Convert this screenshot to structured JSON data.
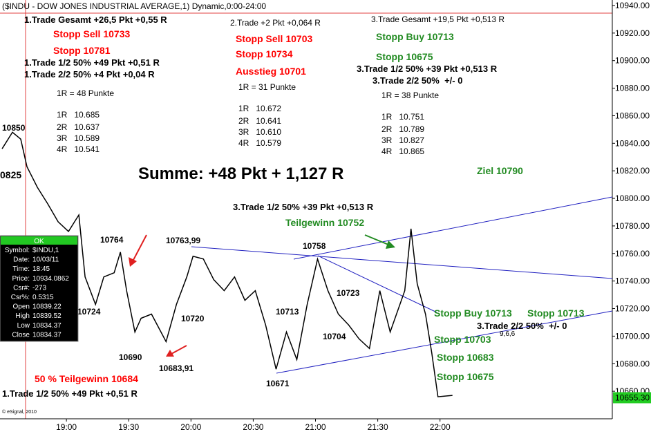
{
  "chart_data": {
    "type": "line",
    "title": "($INDU - DOW JONES INDUSTRIAL AVERAGE,1) Dynamic,0:00-24:00",
    "x": [
      1109,
      1114,
      1118,
      1121,
      1126,
      1131,
      1136,
      1141,
      1146,
      1149,
      1154,
      1158,
      1163,
      1166,
      1169,
      1173,
      1176,
      1181,
      1188,
      1193,
      1198,
      1201,
      1206,
      1211,
      1216,
      1221,
      1226,
      1231,
      1236,
      1241,
      1246,
      1251,
      1256,
      1261,
      1266,
      1271,
      1276,
      1281,
      1286,
      1291,
      1296,
      1303,
      1306,
      1309,
      1313,
      1316,
      1319,
      1326
    ],
    "series": [
      {
        "name": "$INDU,1",
        "color": "#000000",
        "values": [
          10836,
          10848,
          10843,
          10823,
          10808,
          10796,
          10783,
          10776,
          10788,
          10743,
          10723,
          10743,
          10746,
          10761,
          10733,
          10703,
          10713,
          10716,
          10696,
          10723,
          10743,
          10758,
          10756,
          10741,
          10733,
          10743,
          10726,
          10733,
          10708,
          10676,
          10703,
          10683,
          10723,
          10756,
          10733,
          10716,
          10708,
          10698,
          10691,
          10733,
          10703,
          10733,
          10778,
          10738,
          10716,
          10688,
          10656,
          10657
        ]
      }
    ],
    "xlim": [
      1108,
      1403
    ],
    "xticks": [
      {
        "value": 1140,
        "label": "19:00"
      },
      {
        "value": 1170,
        "label": "19:30"
      },
      {
        "value": 1200,
        "label": "20:00"
      },
      {
        "value": 1230,
        "label": "20:30"
      },
      {
        "value": 1260,
        "label": "21:00"
      },
      {
        "value": 1290,
        "label": "21:30"
      },
      {
        "value": 1320,
        "label": "22:00"
      }
    ],
    "ylim": [
      10640,
      10944
    ],
    "yticks": [
      {
        "value": 10660,
        "label": "10660.00"
      },
      {
        "value": 10680,
        "label": "10680.00"
      },
      {
        "value": 10700,
        "label": "10700.00"
      },
      {
        "value": 10720,
        "label": "10720.00"
      },
      {
        "value": 10740,
        "label": "10740.00"
      },
      {
        "value": 10760,
        "label": "10760.00"
      },
      {
        "value": 10780,
        "label": "10780.00"
      },
      {
        "value": 10800,
        "label": "10800.00"
      },
      {
        "value": 10820,
        "label": "10820.00"
      },
      {
        "value": 10840,
        "label": "10840.00"
      },
      {
        "value": 10860,
        "label": "10860.00"
      },
      {
        "value": 10880,
        "label": "10880.00"
      },
      {
        "value": 10900,
        "label": "10900.00"
      },
      {
        "value": 10920,
        "label": "10920.00"
      },
      {
        "value": 10940,
        "label": "10940.00"
      }
    ],
    "last_price": {
      "value": 10655.3,
      "label": "10655.30"
    },
    "annotations": [
      {
        "text": "1.Trade Gesamt +26,5 Pkt +0,55 R",
        "color": "#000000"
      },
      {
        "text": "Stopp Sell 10733",
        "color": "#ff0000"
      },
      {
        "text": "Stopp 10781",
        "color": "#ff0000"
      },
      {
        "text": "1.Trade 1/2 50% +49 Pkt +0,51 R",
        "color": "#000000"
      },
      {
        "text": "1.Trade 2/2 50% +4 Pkt +0,04 R",
        "color": "#000000"
      },
      {
        "text": "1R = 48 Punkte",
        "color": "#000000"
      },
      {
        "text": "1R   10.685",
        "color": "#000000"
      },
      {
        "text": "2R   10.637",
        "color": "#000000"
      },
      {
        "text": "3R   10.589",
        "color": "#000000"
      },
      {
        "text": "4R   10.541",
        "color": "#000000"
      },
      {
        "text": "2.Trade +2 Pkt +0,064 R",
        "color": "#000000"
      },
      {
        "text": "Stopp Sell 10703",
        "color": "#ff0000"
      },
      {
        "text": "Stopp 10734",
        "color": "#ff0000"
      },
      {
        "text": "Ausstieg 10701",
        "color": "#ff0000"
      },
      {
        "text": "1R = 31 Punkte",
        "color": "#000000"
      },
      {
        "text": "1R   10.672",
        "color": "#000000"
      },
      {
        "text": "2R   10.641",
        "color": "#000000"
      },
      {
        "text": "3R   10.610",
        "color": "#000000"
      },
      {
        "text": "4R   10.579",
        "color": "#000000"
      },
      {
        "text": "3.Trade Gesamt +19,5 Pkt +0,513 R",
        "color": "#000000"
      },
      {
        "text": "Stopp Buy 10713",
        "color": "#228b22"
      },
      {
        "text": "Stopp 10675",
        "color": "#228b22"
      },
      {
        "text": "3.Trade 1/2 50% +39 Pkt +0,513 R",
        "color": "#000000"
      },
      {
        "text": "3.Trade 2/2 50%  +/- 0",
        "color": "#000000"
      },
      {
        "text": "1R = 38 Punkte",
        "color": "#000000"
      },
      {
        "text": "1R   10.751",
        "color": "#000000"
      },
      {
        "text": "2R   10.789",
        "color": "#000000"
      },
      {
        "text": "3R   10.827",
        "color": "#000000"
      },
      {
        "text": "4R   10.865",
        "color": "#000000"
      },
      {
        "text": "Summe: +48 Pkt + 1,127 R",
        "color": "#000000"
      },
      {
        "text": "Ziel 10790",
        "color": "#228b22"
      },
      {
        "text": "3.Trade 1/2 50% +39 Pkt +0,513 R",
        "color": "#000000"
      },
      {
        "text": "Teilgewinn 10752",
        "color": "#228b22"
      },
      {
        "text": "10850",
        "color": "#000000"
      },
      {
        "text": "0825",
        "color": "#000000"
      },
      {
        "text": "10764",
        "color": "#000000"
      },
      {
        "text": "10763,99",
        "color": "#000000"
      },
      {
        "text": "10758",
        "color": "#000000"
      },
      {
        "text": "10724",
        "color": "#000000"
      },
      {
        "text": "10720",
        "color": "#000000"
      },
      {
        "text": "10713",
        "color": "#000000"
      },
      {
        "text": "10723",
        "color": "#000000"
      },
      {
        "text": "10704",
        "color": "#000000"
      },
      {
        "text": "10690",
        "color": "#000000"
      },
      {
        "text": "10683,91",
        "color": "#000000"
      },
      {
        "text": "10671",
        "color": "#000000"
      },
      {
        "text": "50 % Teilgewinn 10684",
        "color": "#ff0000"
      },
      {
        "text": "1.Trade 1/2 50% +49 Pkt +0,51 R",
        "color": "#000000"
      },
      {
        "text": "Stopp Buy 10713",
        "color": "#228b22"
      },
      {
        "text": "Stopp 10713",
        "color": "#228b22"
      },
      {
        "text": "3.Trade 2/2 50%  +/- 0",
        "color": "#000000"
      },
      {
        "text": "9,6,6",
        "color": "#000000"
      },
      {
        "text": "Stopp 10703",
        "color": "#228b22"
      },
      {
        "text": "Stopp 10683",
        "color": "#228b22"
      },
      {
        "text": "Stopp 10675",
        "color": "#228b22"
      },
      {
        "text": "© eSignal, 2010",
        "color": "#000000"
      }
    ],
    "info_box": {
      "header": "OK",
      "rows": [
        [
          "Symbol:",
          "$INDU,1"
        ],
        [
          "Date:",
          "10/03/11"
        ],
        [
          "Time:",
          "18:45"
        ],
        [
          "Price:",
          "10934.0862"
        ],
        [
          "Csr#:",
          "-273"
        ],
        [
          "Csr%:",
          "0.5315"
        ],
        [
          "Open",
          "10839.22"
        ],
        [
          "High",
          "10839.52"
        ],
        [
          "Low",
          "10834.37"
        ],
        [
          "Close",
          "10834.37"
        ]
      ]
    }
  }
}
